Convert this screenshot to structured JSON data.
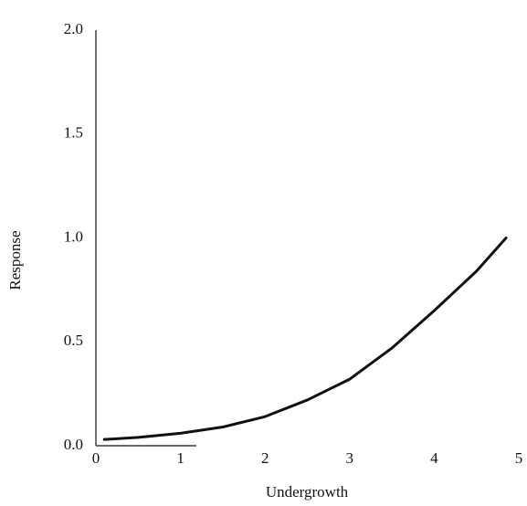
{
  "chart_data": {
    "type": "line",
    "x_label": "Undergrowth",
    "y_label": "Response",
    "x": [
      0.1,
      0.5,
      1,
      1.5,
      2,
      2.5,
      3,
      3.5,
      4,
      4.5,
      4.85
    ],
    "series": [
      {
        "color": "#111111",
        "values": [
          0.03,
          0.04,
          0.06,
          0.09,
          0.14,
          0.22,
          0.32,
          0.47,
          0.65,
          0.84,
          1.0
        ]
      }
    ],
    "xlim": [
      0,
      5
    ],
    "ylim": [
      0,
      2
    ],
    "xticks": [
      0,
      1,
      2,
      3,
      4,
      5
    ],
    "yticks": [
      {
        "value": 0,
        "label": "0.0"
      },
      {
        "value": 0.5,
        "label": "0.5"
      },
      {
        "value": 1,
        "label": "1.0"
      },
      {
        "value": 1.5,
        "label": "1.5"
      },
      {
        "value": 2,
        "label": "2.0"
      }
    ],
    "grid": false
  }
}
